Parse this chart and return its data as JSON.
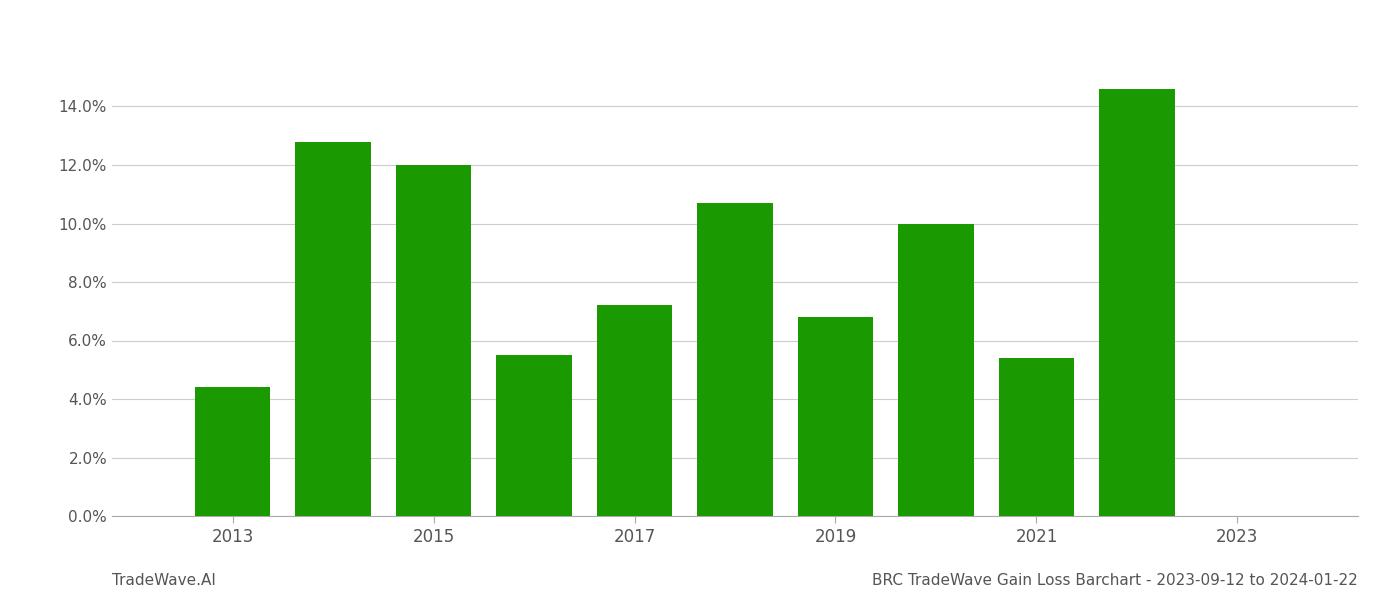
{
  "years": [
    2013,
    2014,
    2015,
    2016,
    2017,
    2018,
    2019,
    2020,
    2021,
    2022
  ],
  "values": [
    0.044,
    0.128,
    0.12,
    0.055,
    0.072,
    0.107,
    0.068,
    0.1,
    0.054,
    0.146
  ],
  "bar_color": "#1a9a00",
  "title": "BRC TradeWave Gain Loss Barchart - 2023-09-12 to 2024-01-22",
  "watermark": "TradeWave.AI",
  "ylim": [
    0,
    0.16
  ],
  "yticks": [
    0.0,
    0.02,
    0.04,
    0.06,
    0.08,
    0.1,
    0.12,
    0.14
  ],
  "xtick_labels": [
    "2013",
    "2015",
    "2017",
    "2019",
    "2021",
    "2023"
  ],
  "xtick_positions": [
    2013,
    2015,
    2017,
    2019,
    2021,
    2023
  ],
  "xlim": [
    2011.8,
    2024.2
  ],
  "background_color": "#ffffff",
  "grid_color": "#cccccc",
  "bar_width": 0.75
}
